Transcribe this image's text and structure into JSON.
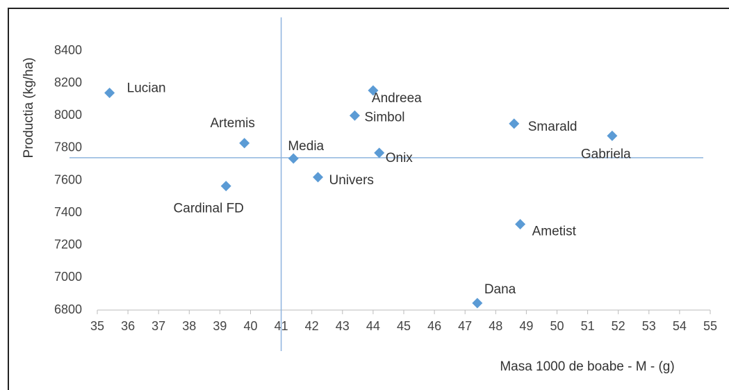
{
  "chart_data": {
    "type": "scatter",
    "xlabel": "Masa 1000 de boabe - M - (g)",
    "ylabel": "Productia (kg/ha)",
    "x": [
      35.4,
      39.8,
      39.2,
      41.4,
      42.2,
      43.4,
      44.0,
      44.2,
      48.6,
      51.8,
      48.8,
      47.4
    ],
    "values": [
      8140,
      7830,
      7565,
      7735,
      7620,
      8000,
      8155,
      7770,
      7950,
      7875,
      7330,
      6843
    ],
    "point_labels": [
      "Lucian",
      "Artemis",
      "Cardinal FD",
      "Media",
      "Univers",
      "Simbol",
      "Andreea",
      "Onix",
      "Smarald",
      "Gabriela",
      "Ametist",
      "Dana"
    ],
    "color": "#5b9bd5",
    "reference_lines": {
      "x": 41,
      "y": 7740
    },
    "xlim": [
      35,
      55
    ],
    "xticks": [
      35,
      36,
      37,
      38,
      39,
      40,
      41,
      42,
      43,
      44,
      45,
      46,
      47,
      48,
      49,
      50,
      51,
      52,
      53,
      54,
      55
    ],
    "ylim": [
      6800,
      8400
    ],
    "yticks": [
      6800,
      7000,
      7200,
      7400,
      7600,
      7800,
      8000,
      8200,
      8400
    ]
  }
}
